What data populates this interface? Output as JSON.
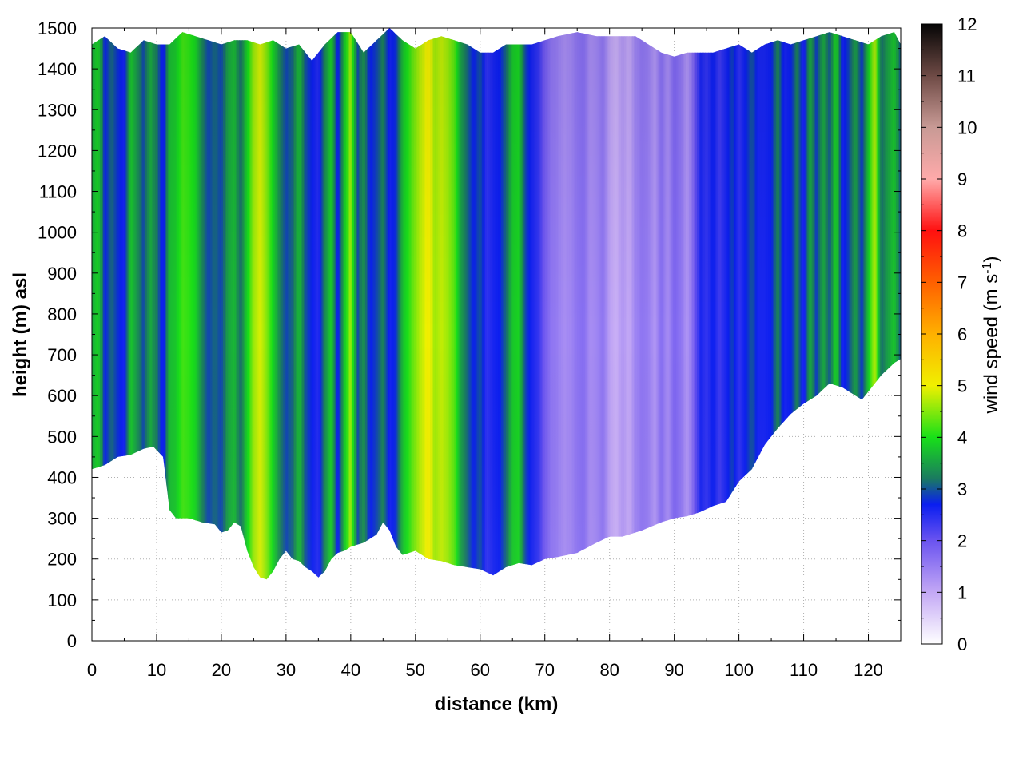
{
  "chart_data": {
    "type": "heatmap",
    "subtype": "vertical-cross-section",
    "xlabel": "distance (km)",
    "ylabel": "height (m) asl",
    "xlim": [
      0,
      125
    ],
    "ylim": [
      0,
      1500
    ],
    "xticks": [
      0,
      10,
      20,
      30,
      40,
      50,
      60,
      70,
      80,
      90,
      100,
      110,
      120
    ],
    "yticks": [
      0,
      100,
      200,
      300,
      400,
      500,
      600,
      700,
      800,
      900,
      1000,
      1100,
      1200,
      1300,
      1400,
      1500
    ],
    "grid": true,
    "colorbar": {
      "label_main": "wind speed (m s",
      "label_sup": "-1",
      "label_close": ")",
      "range": [
        0,
        12
      ],
      "ticks": [
        0,
        1,
        2,
        3,
        4,
        5,
        6,
        7,
        8,
        9,
        10,
        11,
        12
      ],
      "colors": [
        {
          "v": 0,
          "c": "#ffffff"
        },
        {
          "v": 1,
          "c": "#c3a8f5"
        },
        {
          "v": 2,
          "c": "#6a53f0"
        },
        {
          "v": 2.7,
          "c": "#0a1ef0"
        },
        {
          "v": 3.2,
          "c": "#1a7a60"
        },
        {
          "v": 4,
          "c": "#18e018"
        },
        {
          "v": 5,
          "c": "#f0f000"
        },
        {
          "v": 6,
          "c": "#ffb000"
        },
        {
          "v": 7,
          "c": "#ff6000"
        },
        {
          "v": 8,
          "c": "#ff1010"
        },
        {
          "v": 9,
          "c": "#ffaaaa"
        },
        {
          "v": 10,
          "c": "#c89a95"
        },
        {
          "v": 11,
          "c": "#6e4a45"
        },
        {
          "v": 12,
          "c": "#050505"
        }
      ]
    },
    "terrain_height": {
      "x": [
        0,
        2,
        4,
        6,
        8,
        9.5,
        11,
        12,
        13,
        15,
        17,
        19,
        20,
        21,
        22,
        23,
        24,
        25,
        26,
        27,
        28,
        29,
        30,
        31,
        32,
        33,
        34,
        35,
        36,
        37,
        38,
        39,
        40,
        42,
        44,
        45,
        46,
        47,
        48,
        50,
        52,
        54,
        56,
        58,
        60,
        62,
        64,
        66,
        68,
        70,
        72,
        75,
        78,
        80,
        82,
        85,
        88,
        90,
        92,
        94,
        96,
        98,
        100,
        102,
        104,
        106,
        108,
        110,
        112,
        114,
        116,
        118,
        119,
        120,
        122,
        124,
        125
      ],
      "h": [
        420,
        430,
        450,
        455,
        470,
        475,
        450,
        320,
        300,
        300,
        290,
        285,
        265,
        270,
        290,
        280,
        220,
        180,
        155,
        150,
        170,
        200,
        220,
        200,
        195,
        180,
        170,
        155,
        170,
        200,
        215,
        220,
        230,
        240,
        260,
        290,
        270,
        230,
        210,
        220,
        200,
        195,
        185,
        180,
        175,
        160,
        180,
        190,
        185,
        200,
        205,
        215,
        240,
        255,
        255,
        270,
        290,
        300,
        305,
        315,
        330,
        340,
        390,
        420,
        480,
        520,
        555,
        580,
        600,
        630,
        620,
        600,
        590,
        610,
        650,
        680,
        690
      ]
    },
    "top_height": {
      "x": [
        0,
        2,
        4,
        6,
        8,
        10,
        12,
        14,
        16,
        18,
        20,
        22,
        24,
        26,
        28,
        30,
        32,
        34,
        36,
        38,
        40,
        42,
        44,
        46,
        48,
        50,
        52,
        54,
        56,
        58,
        60,
        62,
        64,
        66,
        68,
        70,
        72,
        75,
        78,
        80,
        84,
        88,
        90,
        92,
        94,
        96,
        98,
        100,
        102,
        104,
        106,
        108,
        110,
        112,
        114,
        116,
        118,
        120,
        122,
        124,
        125
      ],
      "h": [
        1460,
        1480,
        1450,
        1440,
        1470,
        1460,
        1460,
        1490,
        1480,
        1470,
        1460,
        1470,
        1470,
        1460,
        1470,
        1450,
        1460,
        1420,
        1460,
        1490,
        1490,
        1440,
        1470,
        1500,
        1470,
        1450,
        1470,
        1480,
        1470,
        1460,
        1440,
        1440,
        1460,
        1460,
        1460,
        1470,
        1480,
        1490,
        1480,
        1480,
        1480,
        1440,
        1430,
        1440,
        1440,
        1440,
        1450,
        1460,
        1440,
        1460,
        1470,
        1460,
        1470,
        1480,
        1490,
        1480,
        1470,
        1460,
        1480,
        1490,
        1460
      ]
    },
    "wind_columns": {
      "x": [
        0,
        1,
        2,
        3,
        4,
        5,
        6,
        7,
        8,
        9,
        10,
        11,
        12,
        13,
        14,
        15,
        16,
        17,
        18,
        19,
        20,
        21,
        22,
        23,
        24,
        25,
        26,
        27,
        28,
        29,
        30,
        31,
        32,
        33,
        34,
        35,
        36,
        37,
        38,
        39,
        40,
        41,
        42,
        43,
        44,
        45,
        46,
        47,
        48,
        49,
        50,
        51,
        52,
        53,
        54,
        55,
        56,
        57,
        58,
        59,
        60,
        61,
        62,
        63,
        64,
        65,
        66,
        67,
        68,
        69,
        70,
        71,
        72,
        73,
        74,
        75,
        76,
        77,
        78,
        79,
        80,
        81,
        82,
        83,
        84,
        85,
        86,
        87,
        88,
        89,
        90,
        91,
        92,
        93,
        94,
        95,
        96,
        97,
        98,
        99,
        100,
        101,
        102,
        103,
        104,
        105,
        106,
        107,
        108,
        109,
        110,
        111,
        112,
        113,
        114,
        115,
        116,
        117,
        118,
        119,
        120,
        121,
        122,
        123,
        124,
        125
      ],
      "speed": [
        3.6,
        3.9,
        2.7,
        3.1,
        2.8,
        2.6,
        3.8,
        3.4,
        2.9,
        3.6,
        3.2,
        2.6,
        3.7,
        3.8,
        4.2,
        4.1,
        3.9,
        3.3,
        2.9,
        3.1,
        2.9,
        3.5,
        3.7,
        3.1,
        3.9,
        4.6,
        4.9,
        4.5,
        3.9,
        3.3,
        2.9,
        3.1,
        3.7,
        3.0,
        2.7,
        2.5,
        3.3,
        3.9,
        2.6,
        3.7,
        4.7,
        2.9,
        3.4,
        2.7,
        2.9,
        3.3,
        2.6,
        2.8,
        3.7,
        4.1,
        4.5,
        4.8,
        5.1,
        4.6,
        4.8,
        4.6,
        4.3,
        3.5,
        3.1,
        2.7,
        3.0,
        2.4,
        2.6,
        2.7,
        3.1,
        3.8,
        3.9,
        2.9,
        2.6,
        2.4,
        1.9,
        1.6,
        1.5,
        1.3,
        1.4,
        1.6,
        1.7,
        1.3,
        1.4,
        1.6,
        1.1,
        0.9,
        1.2,
        1.0,
        1.4,
        1.6,
        1.5,
        1.2,
        1.7,
        1.3,
        1.8,
        1.6,
        1.2,
        1.8,
        2.6,
        2.4,
        2.7,
        2.3,
        2.6,
        2.9,
        2.4,
        2.7,
        3.0,
        2.6,
        2.6,
        2.7,
        3.3,
        2.6,
        2.7,
        3.3,
        2.5,
        3.6,
        2.8,
        3.6,
        3.0,
        3.9,
        2.6,
        2.9,
        3.5,
        2.8,
        3.8,
        4.8,
        3.1,
        3.5,
        3.8,
        3.0
      ]
    }
  }
}
